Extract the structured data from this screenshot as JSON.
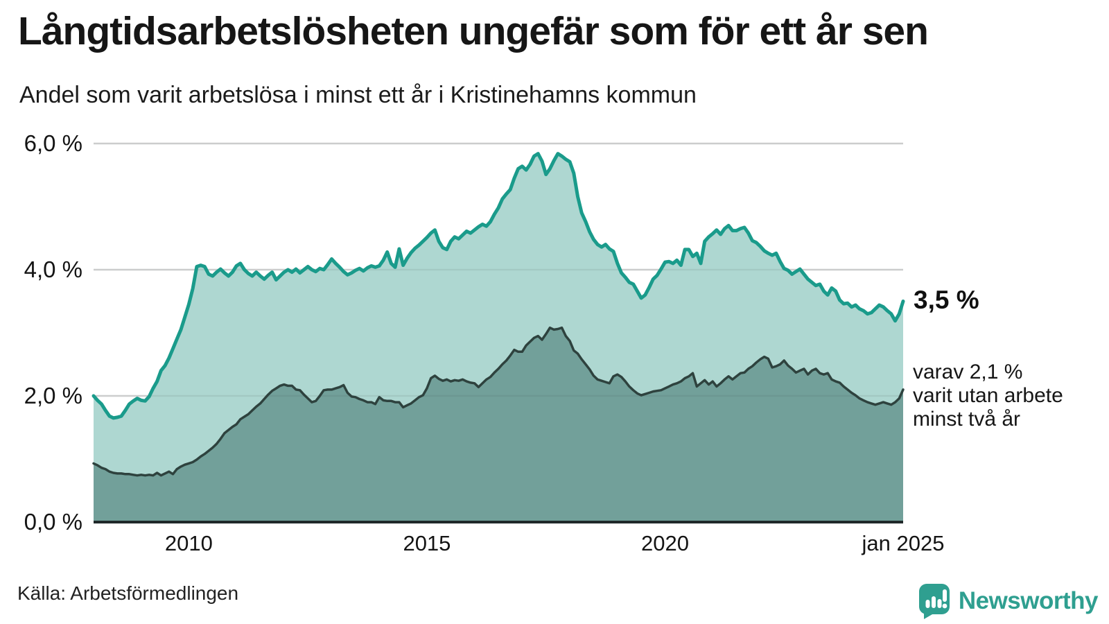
{
  "header": {
    "title": "Långtidsarbetslösheten ungefär som för ett år sen",
    "subtitle": "Andel som varit arbetslösa i minst ett år i Kristinehamns kommun"
  },
  "annotations": {
    "end_value": "3,5 %",
    "secondary": [
      "varav 2,1 %",
      "varit utan arbete",
      "minst två år"
    ]
  },
  "footer": {
    "source": "Källa: Arbetsförmedlingen"
  },
  "branding": {
    "name": "Newsworthy"
  },
  "colors": {
    "accent_line": "#1a9b8b",
    "accent_fill": "#aed7d1",
    "dark_line": "#2e423e",
    "dark_fill": "#72a09a",
    "grid": "#dcdcdc",
    "grid_overlay": "#44534f",
    "axis": "#20292a",
    "text": "#161616",
    "brand": "#2f9f90"
  },
  "chart_data": {
    "type": "area",
    "title": "Långtidsarbetslösheten ungefär som för ett år sen",
    "subtitle": "Andel som varit arbetslösa i minst ett år i Kristinehamns kommun",
    "xlabel": "",
    "ylabel": "",
    "x_start": "2008-01",
    "x_end": "2025-01",
    "interval": "month",
    "grid": true,
    "legend_position": "end-labels",
    "ylim": [
      0,
      6.5
    ],
    "y_ticks": [
      {
        "value": 0,
        "label": "0,0 %"
      },
      {
        "value": 2,
        "label": "2,0 %"
      },
      {
        "value": 4,
        "label": "4,0 %"
      },
      {
        "value": 6,
        "label": "6,0 %"
      }
    ],
    "x_ticks": [
      {
        "month_index": 24,
        "label": "2010"
      },
      {
        "month_index": 84,
        "label": "2015"
      },
      {
        "month_index": 144,
        "label": "2020"
      },
      {
        "month_index": 204,
        "label": "jan 2025"
      }
    ],
    "series": [
      {
        "id": "one-year",
        "name": "Andel arbetslösa minst ett år",
        "end_label": "3,5 %",
        "color": "#1a9b8b",
        "fill": "#aed7d1",
        "stroke_width": 5,
        "values": [
          2.0,
          1.93,
          1.87,
          1.77,
          1.68,
          1.65,
          1.66,
          1.68,
          1.77,
          1.87,
          1.92,
          1.96,
          1.93,
          1.92,
          1.99,
          2.12,
          2.23,
          2.4,
          2.48,
          2.6,
          2.75,
          2.9,
          3.05,
          3.25,
          3.45,
          3.7,
          4.05,
          4.07,
          4.05,
          3.93,
          3.9,
          3.96,
          4.01,
          3.95,
          3.9,
          3.96,
          4.06,
          4.1,
          4.0,
          3.94,
          3.9,
          3.96,
          3.9,
          3.85,
          3.91,
          3.96,
          3.84,
          3.9,
          3.96,
          4.0,
          3.96,
          4.01,
          3.95,
          4.0,
          4.05,
          4.0,
          3.97,
          4.02,
          4.0,
          4.08,
          4.17,
          4.1,
          4.04,
          3.97,
          3.92,
          3.95,
          3.99,
          4.02,
          3.98,
          4.03,
          4.06,
          4.04,
          4.06,
          4.15,
          4.28,
          4.1,
          4.04,
          4.33,
          4.07,
          4.18,
          4.27,
          4.34,
          4.39,
          4.45,
          4.51,
          4.58,
          4.63,
          4.45,
          4.35,
          4.32,
          4.45,
          4.52,
          4.49,
          4.55,
          4.61,
          4.58,
          4.63,
          4.68,
          4.72,
          4.69,
          4.76,
          4.88,
          4.98,
          5.12,
          5.2,
          5.27,
          5.45,
          5.6,
          5.64,
          5.58,
          5.67,
          5.8,
          5.84,
          5.72,
          5.51,
          5.6,
          5.73,
          5.84,
          5.8,
          5.75,
          5.71,
          5.53,
          5.16,
          4.9,
          4.76,
          4.6,
          4.48,
          4.4,
          4.36,
          4.4,
          4.33,
          4.29,
          4.1,
          3.95,
          3.88,
          3.8,
          3.77,
          3.66,
          3.55,
          3.6,
          3.72,
          3.85,
          3.91,
          4.01,
          4.12,
          4.13,
          4.1,
          4.15,
          4.07,
          4.32,
          4.32,
          4.21,
          4.26,
          4.1,
          4.45,
          4.52,
          4.57,
          4.63,
          4.56,
          4.65,
          4.7,
          4.62,
          4.62,
          4.65,
          4.67,
          4.58,
          4.46,
          4.43,
          4.37,
          4.3,
          4.26,
          4.23,
          4.26,
          4.13,
          4.02,
          3.99,
          3.93,
          3.97,
          4.01,
          3.93,
          3.85,
          3.8,
          3.75,
          3.77,
          3.66,
          3.6,
          3.71,
          3.66,
          3.52,
          3.46,
          3.47,
          3.41,
          3.44,
          3.38,
          3.35,
          3.3,
          3.32,
          3.38,
          3.44,
          3.41,
          3.35,
          3.3,
          3.19,
          3.3,
          3.5
        ]
      },
      {
        "id": "two-years",
        "name": "Andel arbetslösa minst två år",
        "end_label": "varav 2,1 % varit utan arbete minst två år",
        "color": "#2e423e",
        "fill": "#72a09a",
        "stroke_width": 3.5,
        "values": [
          0.93,
          0.9,
          0.86,
          0.84,
          0.8,
          0.78,
          0.77,
          0.77,
          0.76,
          0.76,
          0.75,
          0.74,
          0.75,
          0.74,
          0.75,
          0.74,
          0.78,
          0.74,
          0.77,
          0.8,
          0.76,
          0.84,
          0.88,
          0.91,
          0.93,
          0.95,
          0.99,
          1.04,
          1.08,
          1.13,
          1.18,
          1.24,
          1.32,
          1.41,
          1.46,
          1.51,
          1.55,
          1.63,
          1.67,
          1.71,
          1.77,
          1.83,
          1.88,
          1.95,
          2.02,
          2.08,
          2.12,
          2.16,
          2.18,
          2.16,
          2.16,
          2.1,
          2.09,
          2.02,
          1.96,
          1.9,
          1.92,
          2.0,
          2.09,
          2.1,
          2.1,
          2.12,
          2.14,
          2.17,
          2.05,
          1.99,
          1.98,
          1.95,
          1.93,
          1.9,
          1.9,
          1.87,
          1.98,
          1.93,
          1.92,
          1.92,
          1.9,
          1.9,
          1.82,
          1.85,
          1.88,
          1.93,
          1.98,
          2.01,
          2.12,
          2.28,
          2.32,
          2.27,
          2.24,
          2.26,
          2.23,
          2.25,
          2.24,
          2.26,
          2.23,
          2.21,
          2.2,
          2.14,
          2.2,
          2.26,
          2.3,
          2.37,
          2.43,
          2.5,
          2.56,
          2.64,
          2.73,
          2.7,
          2.7,
          2.8,
          2.86,
          2.92,
          2.95,
          2.89,
          2.98,
          3.08,
          3.05,
          3.06,
          3.08,
          2.95,
          2.87,
          2.72,
          2.67,
          2.58,
          2.5,
          2.42,
          2.32,
          2.26,
          2.24,
          2.22,
          2.2,
          2.31,
          2.34,
          2.3,
          2.23,
          2.15,
          2.09,
          2.04,
          2.01,
          2.03,
          2.05,
          2.07,
          2.08,
          2.09,
          2.12,
          2.15,
          2.18,
          2.2,
          2.23,
          2.28,
          2.31,
          2.36,
          2.15,
          2.2,
          2.25,
          2.18,
          2.23,
          2.15,
          2.2,
          2.26,
          2.31,
          2.26,
          2.31,
          2.36,
          2.37,
          2.43,
          2.47,
          2.53,
          2.58,
          2.62,
          2.59,
          2.45,
          2.47,
          2.5,
          2.56,
          2.48,
          2.43,
          2.37,
          2.4,
          2.43,
          2.34,
          2.4,
          2.43,
          2.36,
          2.34,
          2.36,
          2.26,
          2.23,
          2.21,
          2.15,
          2.1,
          2.05,
          2.01,
          1.96,
          1.93,
          1.9,
          1.88,
          1.86,
          1.88,
          1.9,
          1.88,
          1.86,
          1.9,
          1.96,
          2.1
        ]
      }
    ]
  }
}
